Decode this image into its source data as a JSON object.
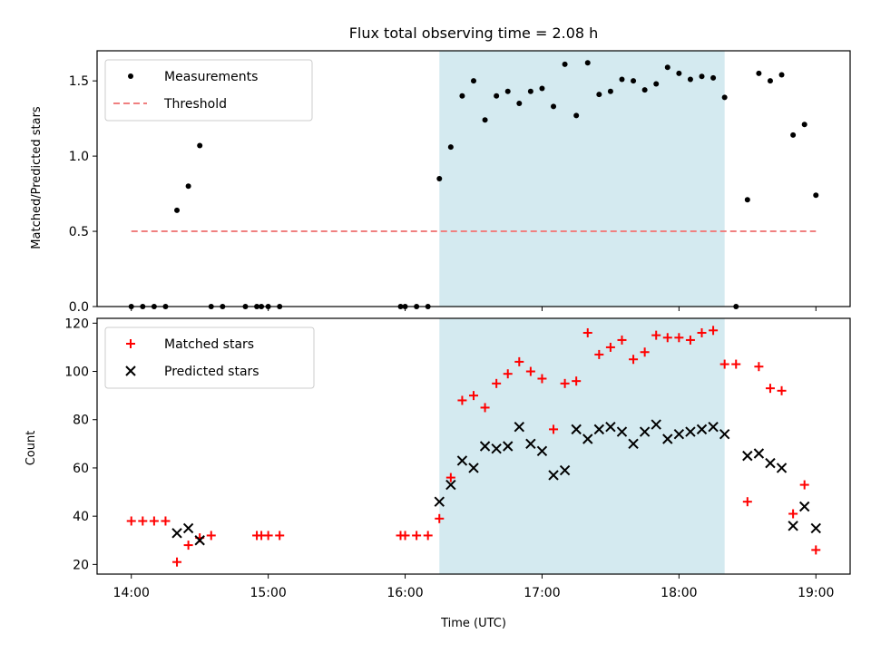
{
  "chart_data": [
    {
      "type": "scatter",
      "title": "Flux total observing time = 2.08 h",
      "xlabel": "",
      "ylabel": "Matched/Predicted stars",
      "ylim": [
        0,
        1.7
      ],
      "xlim": [
        "13:45",
        "19:15"
      ],
      "yticks": [
        "0.0",
        "0.5",
        "1.0",
        "1.5"
      ],
      "shaded_region": {
        "start": "16:15",
        "end": "18:20",
        "color": "#d4eaf0"
      },
      "legend_position": "upper left",
      "series": [
        {
          "name": "Measurements",
          "marker": "dot",
          "color": "#000000",
          "x": [
            "14:00",
            "14:05",
            "14:10",
            "14:15",
            "14:20",
            "14:25",
            "14:30",
            "14:35",
            "14:40",
            "14:50",
            "14:55",
            "14:57",
            "15:00",
            "15:05",
            "15:58",
            "16:00",
            "16:05",
            "16:10",
            "16:15",
            "16:20",
            "16:25",
            "16:30",
            "16:35",
            "16:40",
            "16:45",
            "16:50",
            "16:55",
            "17:00",
            "17:05",
            "17:10",
            "17:15",
            "17:20",
            "17:25",
            "17:30",
            "17:35",
            "17:40",
            "17:45",
            "17:50",
            "17:55",
            "18:00",
            "18:05",
            "18:10",
            "18:15",
            "18:20",
            "18:25",
            "18:30",
            "18:35",
            "18:40",
            "18:45",
            "18:50",
            "18:55",
            "19:00"
          ],
          "y": [
            0,
            0,
            0,
            0,
            0.64,
            0.8,
            1.07,
            0,
            0,
            0,
            0,
            0,
            0,
            0,
            0,
            0,
            0,
            0,
            0.85,
            1.06,
            1.4,
            1.5,
            1.24,
            1.4,
            1.43,
            1.35,
            1.43,
            1.45,
            1.33,
            1.61,
            1.27,
            1.62,
            1.41,
            1.43,
            1.51,
            1.5,
            1.44,
            1.48,
            1.59,
            1.55,
            1.51,
            1.53,
            1.52,
            1.39,
            0,
            0.71,
            1.55,
            1.5,
            1.54,
            1.14,
            1.21,
            0.74
          ]
        },
        {
          "name": "Threshold",
          "style": "dashed",
          "color": "#f08080",
          "x": [
            "14:00",
            "19:00"
          ],
          "y": [
            0.5,
            0.5
          ]
        }
      ]
    },
    {
      "type": "scatter",
      "title": "",
      "xlabel": "Time (UTC)",
      "ylabel": "Count",
      "ylim": [
        16,
        122
      ],
      "xlim": [
        "13:45",
        "19:15"
      ],
      "yticks": [
        "20",
        "40",
        "60",
        "80",
        "100",
        "120"
      ],
      "xticks": [
        "14:00",
        "15:00",
        "16:00",
        "17:00",
        "18:00",
        "19:00"
      ],
      "shaded_region": {
        "start": "16:15",
        "end": "18:20",
        "color": "#d4eaf0"
      },
      "legend_position": "upper left",
      "series": [
        {
          "name": "Matched stars",
          "marker": "plus",
          "color": "#ff0000",
          "x": [
            "14:00",
            "14:05",
            "14:10",
            "14:15",
            "14:20",
            "14:25",
            "14:30",
            "14:35",
            "14:55",
            "14:57",
            "15:00",
            "15:05",
            "15:58",
            "16:00",
            "16:05",
            "16:10",
            "16:15",
            "16:20",
            "16:25",
            "16:30",
            "16:35",
            "16:40",
            "16:45",
            "16:50",
            "16:55",
            "17:00",
            "17:05",
            "17:10",
            "17:15",
            "17:20",
            "17:25",
            "17:30",
            "17:35",
            "17:40",
            "17:45",
            "17:50",
            "17:55",
            "18:00",
            "18:05",
            "18:10",
            "18:15",
            "18:20",
            "18:25",
            "18:30",
            "18:35",
            "18:40",
            "18:45",
            "18:50",
            "18:55",
            "19:00"
          ],
          "y": [
            38,
            38,
            38,
            38,
            21,
            28,
            31,
            32,
            32,
            32,
            32,
            32,
            32,
            32,
            32,
            32,
            39,
            56,
            88,
            90,
            85,
            95,
            99,
            104,
            100,
            97,
            76,
            95,
            96,
            116,
            107,
            110,
            113,
            105,
            108,
            115,
            114,
            114,
            113,
            116,
            117,
            103,
            103,
            46,
            102,
            93,
            92,
            41,
            53,
            26
          ]
        },
        {
          "name": "Predicted stars",
          "marker": "x",
          "color": "#000000",
          "x": [
            "14:20",
            "14:25",
            "14:30",
            "16:15",
            "16:20",
            "16:25",
            "16:30",
            "16:35",
            "16:40",
            "16:45",
            "16:50",
            "16:55",
            "17:00",
            "17:05",
            "17:10",
            "17:15",
            "17:20",
            "17:25",
            "17:30",
            "17:35",
            "17:40",
            "17:45",
            "17:50",
            "17:55",
            "18:00",
            "18:05",
            "18:10",
            "18:15",
            "18:20",
            "18:30",
            "18:35",
            "18:40",
            "18:45",
            "18:50",
            "18:55",
            "19:00"
          ],
          "y": [
            33,
            35,
            30,
            46,
            53,
            63,
            60,
            69,
            68,
            69,
            77,
            70,
            67,
            57,
            59,
            76,
            72,
            76,
            77,
            75,
            70,
            75,
            78,
            72,
            74,
            75,
            76,
            77,
            74,
            65,
            66,
            62,
            60,
            36,
            44,
            35
          ]
        }
      ]
    }
  ]
}
